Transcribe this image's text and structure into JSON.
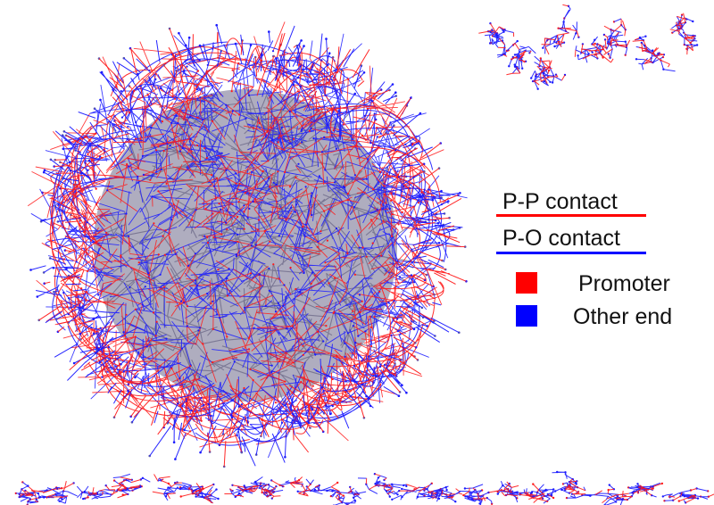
{
  "legend": {
    "pp_contact": "P-P contact",
    "po_contact": "P-O contact",
    "promoter": "Promoter",
    "other_end": "Other end"
  },
  "colors": {
    "promoter_red": "#ff0000",
    "other_end_blue": "#0000ff",
    "pp_edge_red": "#ff1a1a",
    "po_edge_blue": "#1a1aff",
    "dense_core_gray": "#6e6a8a"
  },
  "network": {
    "components": [
      "main-hairball-component",
      "top-right-small-components",
      "bottom-strip-small-components"
    ]
  }
}
